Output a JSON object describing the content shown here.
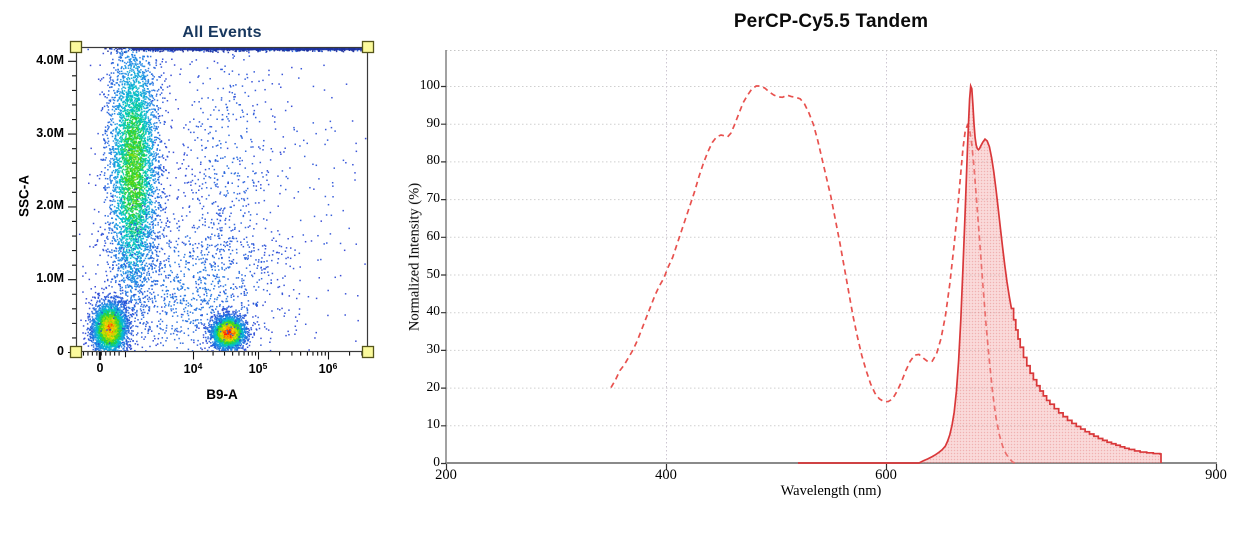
{
  "left_chart": {
    "title": "All Events",
    "title_color": "#17375E",
    "y_axis": {
      "label": "SSC-A",
      "ticks": [
        {
          "label": "4.0M",
          "value_m": 4.0
        },
        {
          "label": "3.0M",
          "value_m": 3.0
        },
        {
          "label": "2.0M",
          "value_m": 2.0
        },
        {
          "label": "1.0M",
          "value_m": 1.0
        },
        {
          "label": "0",
          "value_m": 0
        }
      ]
    },
    "x_axis": {
      "label": "B9-A",
      "ticks": [
        {
          "label": "0",
          "value": 0
        },
        {
          "base": "10",
          "exp": "4",
          "value": 10000
        },
        {
          "base": "10",
          "exp": "5",
          "value": 100000
        },
        {
          "base": "10",
          "exp": "6",
          "value": 1000000
        }
      ]
    },
    "gate": {
      "handle_fill": "#FBFA9C",
      "handle_border": "#55551A",
      "box_color": "#3A3A3A",
      "max_channel_line_color": "#1B2FA0"
    },
    "chart_data": {
      "type": "scatter",
      "subtype": "pseudocolor-density-flow-cytometry",
      "title": "All Events",
      "xlabel": "B9-A",
      "ylabel": "SSC-A",
      "x_scale": "biexponential (0, 1e4, 1e5, 1e6)",
      "y_range_events": [
        0,
        4200000
      ],
      "density_colormap": [
        "#2A3AD2",
        "#1C8CE6",
        "#00C8C8",
        "#28D228",
        "#A0DC00",
        "#FFE000",
        "#FF8C00",
        "#FF1400"
      ],
      "populations": [
        {
          "name": "ssc-high-band",
          "n": 4600,
          "cx": 0.195,
          "cy": 0.4,
          "sx": 0.045,
          "sy": 0.23,
          "peak": 0.56
        },
        {
          "name": "low-scatter-negative",
          "n": 2900,
          "cx": 0.113,
          "cy": 0.92,
          "sx": 0.029,
          "sy": 0.042,
          "peak": 0.85
        },
        {
          "name": "low-scatter-positive",
          "n": 2700,
          "cx": 0.52,
          "cy": 0.935,
          "sx": 0.028,
          "sy": 0.026,
          "peak": 1.0
        },
        {
          "name": "diffuse-scatter",
          "n": 1150,
          "cx": 0.4,
          "cy": 0.79,
          "sx": 0.175,
          "sy": 0.155,
          "peak": 0.16
        },
        {
          "name": "sparse-column",
          "n": 520,
          "cx": 0.52,
          "cy": 0.42,
          "sx": 0.1,
          "sy": 0.3,
          "peak": 0.11
        },
        {
          "name": "sparse-right",
          "n": 150,
          "cx": 0.78,
          "cy": 0.48,
          "sx": 0.13,
          "sy": 0.32,
          "peak": 0.07
        },
        {
          "name": "max-channel-edge",
          "n": 900,
          "cx": 0.62,
          "cy": 0.004,
          "sx": 0.27,
          "sy": 0.0045,
          "peak": 0.3,
          "color": "#1C2F9E"
        }
      ]
    }
  },
  "right_chart": {
    "title": "PerCP-Cy5.5 Tandem",
    "y_axis": {
      "label": "Normalized Intensity (%)",
      "ticks": [
        0,
        10,
        20,
        30,
        40,
        50,
        60,
        70,
        80,
        90,
        100
      ]
    },
    "x_axis": {
      "label": "Wavelength (nm)",
      "ticks": [
        200,
        400,
        600,
        900
      ]
    },
    "colors": {
      "excitation_line": "#E8514E",
      "emission_line": "#D9383A",
      "emission_fill": "rgba(243,166,166,0.40)",
      "emission_fill_dot": "rgba(224,86,86,0.55)",
      "gridline": "#CFCFCF",
      "axis": "#8A8A8A"
    },
    "chart_data": {
      "type": "area",
      "title": "PerCP-Cy5.5 Tandem",
      "xlabel": "Wavelength (nm)",
      "ylabel": "Normalized Intensity (%)",
      "xlim": [
        200,
        900
      ],
      "ylim": [
        0,
        109
      ],
      "grid": "horizontal every 10, vertical at 400 and 600, dotted",
      "series": [
        {
          "name": "excitation",
          "style": "dashed-line",
          "points": [
            [
              350,
              20
            ],
            [
              354,
              22
            ],
            [
              358,
              24.5
            ],
            [
              362,
              26
            ],
            [
              366,
              28
            ],
            [
              370,
              30
            ],
            [
              374,
              32.5
            ],
            [
              378,
              35.5
            ],
            [
              382,
              38.5
            ],
            [
              386,
              41.5
            ],
            [
              390,
              44.5
            ],
            [
              394,
              47
            ],
            [
              398,
              49
            ],
            [
              402,
              52
            ],
            [
              406,
              54.5
            ],
            [
              410,
              58
            ],
            [
              414,
              61.5
            ],
            [
              418,
              65
            ],
            [
              422,
              68.5
            ],
            [
              426,
              72
            ],
            [
              430,
              76
            ],
            [
              434,
              79.5
            ],
            [
              438,
              82.5
            ],
            [
              442,
              85
            ],
            [
              446,
              86.5
            ],
            [
              450,
              87
            ],
            [
              453,
              86.8
            ],
            [
              456,
              86.5
            ],
            [
              459,
              87.5
            ],
            [
              462,
              89.5
            ],
            [
              466,
              92.5
            ],
            [
              470,
              95.5
            ],
            [
              474,
              97.5
            ],
            [
              478,
              99.2
            ],
            [
              482,
              100
            ],
            [
              486,
              100
            ],
            [
              490,
              99.4
            ],
            [
              494,
              98.4
            ],
            [
              498,
              97.6
            ],
            [
              502,
              97.1
            ],
            [
              506,
              97
            ],
            [
              510,
              97.6
            ],
            [
              514,
              97.2
            ],
            [
              518,
              97
            ],
            [
              522,
              96.6
            ],
            [
              526,
              95.2
            ],
            [
              530,
              92.8
            ],
            [
              534,
              89.8
            ],
            [
              538,
              85.5
            ],
            [
              542,
              80.5
            ],
            [
              546,
              75.5
            ],
            [
              550,
              70.5
            ],
            [
              554,
              64.5
            ],
            [
              558,
              58.5
            ],
            [
              562,
              52
            ],
            [
              566,
              45.5
            ],
            [
              570,
              39
            ],
            [
              574,
              33.5
            ],
            [
              578,
              28.5
            ],
            [
              582,
              24.5
            ],
            [
              586,
              21
            ],
            [
              590,
              18.5
            ],
            [
              594,
              17
            ],
            [
              598,
              16.3
            ],
            [
              602,
              16.3
            ],
            [
              606,
              17
            ],
            [
              610,
              19
            ],
            [
              614,
              21.5
            ],
            [
              618,
              24.5
            ],
            [
              622,
              27
            ],
            [
              626,
              28.6
            ],
            [
              630,
              28.8
            ],
            [
              634,
              27.8
            ],
            [
              638,
              26.9
            ],
            [
              642,
              27
            ],
            [
              646,
              29
            ],
            [
              650,
              33
            ],
            [
              654,
              39
            ],
            [
              658,
              47.5
            ],
            [
              662,
              58
            ],
            [
              665,
              67
            ],
            [
              668,
              77
            ],
            [
              670,
              83.5
            ],
            [
              672,
              88
            ],
            [
              674,
              89.6
            ],
            [
              676,
              88.5
            ],
            [
              678,
              84.5
            ],
            [
              680,
              78.5
            ],
            [
              682,
              71
            ],
            [
              685,
              59.5
            ],
            [
              688,
              47.5
            ],
            [
              691,
              36.5
            ],
            [
              694,
              27
            ],
            [
              697,
              18.5
            ],
            [
              700,
              12
            ],
            [
              703,
              7.5
            ],
            [
              706,
              4.5
            ],
            [
              709,
              2.5
            ],
            [
              712,
              1.2
            ],
            [
              715,
              0.3
            ],
            [
              717,
              0
            ]
          ]
        },
        {
          "name": "emission",
          "style": "filled-area",
          "step_from_nm": 714,
          "points": [
            [
              520,
              0
            ],
            [
              630,
              0
            ],
            [
              634,
              0.6
            ],
            [
              638,
              1.1
            ],
            [
              642,
              1.7
            ],
            [
              645,
              2.2
            ],
            [
              648,
              2.8
            ],
            [
              651,
              3.5
            ],
            [
              654,
              4.5
            ],
            [
              656,
              5.8
            ],
            [
              658,
              7.5
            ],
            [
              660,
              10
            ],
            [
              662,
              13.5
            ],
            [
              664,
              19
            ],
            [
              666,
              27
            ],
            [
              668,
              38
            ],
            [
              670,
              52
            ],
            [
              672,
              67
            ],
            [
              673,
              75
            ],
            [
              674,
              83
            ],
            [
              675,
              90
            ],
            [
              676,
              96.5
            ],
            [
              677,
              100
            ],
            [
              678,
              99.3
            ],
            [
              679,
              95
            ],
            [
              680,
              90
            ],
            [
              681,
              86.3
            ],
            [
              682,
              84.3
            ],
            [
              683,
              83.4
            ],
            [
              684,
              83.1
            ],
            [
              685,
              83.4
            ],
            [
              686,
              84
            ],
            [
              688,
              85.1
            ],
            [
              690,
              85.9
            ],
            [
              692,
              85.4
            ],
            [
              694,
              83.9
            ],
            [
              696,
              81
            ],
            [
              698,
              77.2
            ],
            [
              700,
              72.6
            ],
            [
              702,
              67.5
            ],
            [
              704,
              62.3
            ],
            [
              706,
              57.2
            ],
            [
              708,
              52.4
            ],
            [
              710,
              48
            ],
            [
              712,
              44.3
            ],
            [
              714,
              41
            ],
            [
              716,
              38
            ],
            [
              718,
              35.3
            ],
            [
              720,
              32.9
            ],
            [
              722,
              30.7
            ],
            [
              725,
              28
            ],
            [
              728,
              25.8
            ],
            [
              731,
              23.8
            ],
            [
              734,
              22.1
            ],
            [
              737,
              20.5
            ],
            [
              740,
              19.1
            ],
            [
              743,
              17.8
            ],
            [
              746,
              16.6
            ],
            [
              749,
              15.6
            ],
            [
              753,
              14.4
            ],
            [
              757,
              13.3
            ],
            [
              761,
              12.3
            ],
            [
              765,
              11.3
            ],
            [
              769,
              10.5
            ],
            [
              773,
              9.7
            ],
            [
              777,
              9
            ],
            [
              781,
              8.3
            ],
            [
              785,
              7.7
            ],
            [
              789,
              7.1
            ],
            [
              793,
              6.5
            ],
            [
              797,
              6
            ],
            [
              801,
              5.5
            ],
            [
              805,
              5.1
            ],
            [
              809,
              4.7
            ],
            [
              813,
              4.3
            ],
            [
              817,
              3.9
            ],
            [
              821,
              3.6
            ],
            [
              826,
              3.2
            ],
            [
              831,
              2.9
            ],
            [
              837,
              2.7
            ],
            [
              843,
              2.5
            ],
            [
              849,
              2.4
            ],
            [
              850,
              0
            ]
          ]
        }
      ]
    }
  }
}
